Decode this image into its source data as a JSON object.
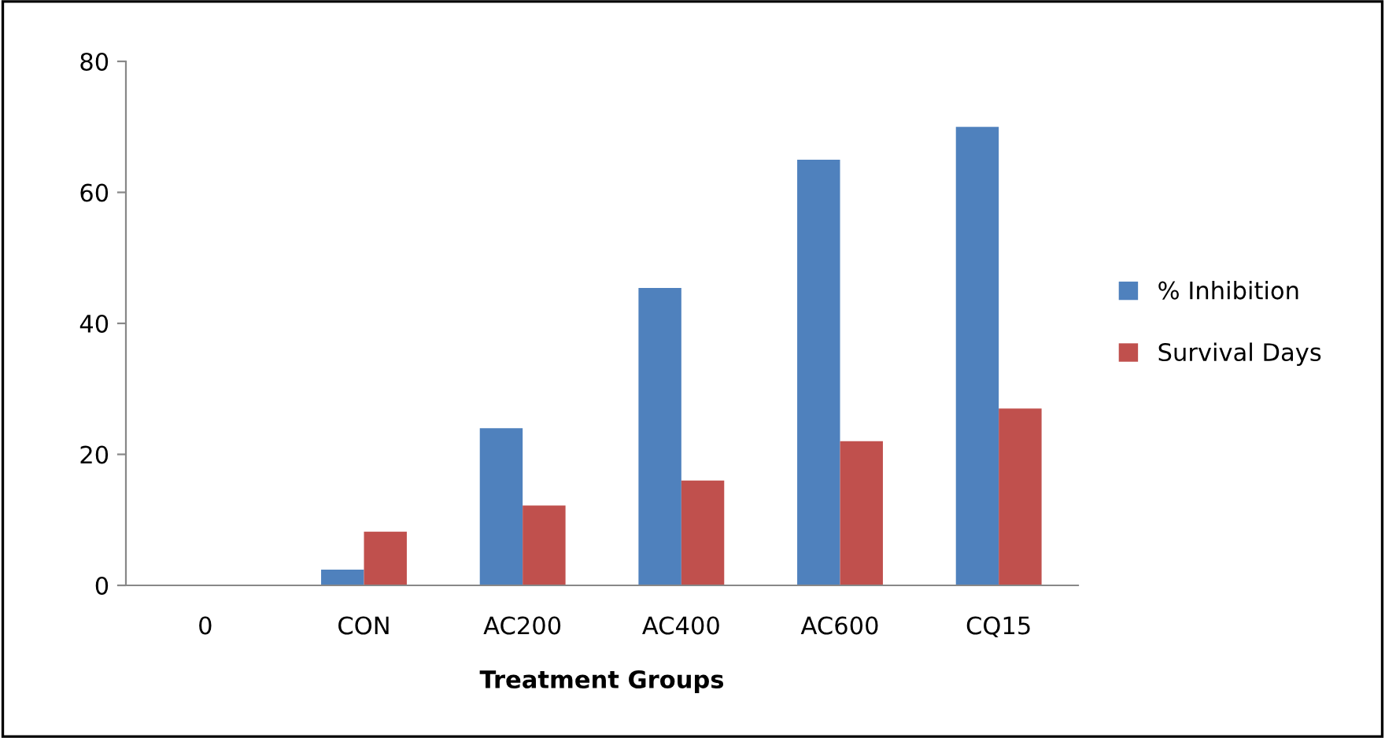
{
  "chart_data": {
    "type": "bar",
    "xlabel": "Treatment Groups",
    "categories": [
      "0",
      "CON",
      "AC200",
      "AC400",
      "AC600",
      "CQ15"
    ],
    "series": [
      {
        "name": "% Inhibition",
        "color": "#4f81bd",
        "values": [
          0,
          2.4,
          24,
          45.4,
          65,
          70
        ]
      },
      {
        "name": "Survival Days",
        "color": "#c0504d",
        "values": [
          0,
          8.2,
          12.2,
          16,
          22,
          27
        ]
      }
    ],
    "ylim": [
      0,
      80
    ],
    "yticks": [
      0,
      20,
      40,
      60,
      80
    ],
    "grid": false,
    "legend": "right"
  }
}
